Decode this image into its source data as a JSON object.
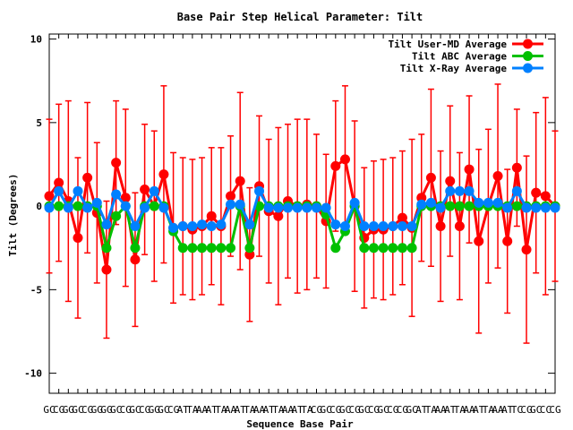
{
  "chart_data": {
    "type": "line",
    "title": "Base Pair Step Helical Parameter: Tilt",
    "xlabel": "Sequence Base Pair",
    "ylabel": "Tilt (Degrees)",
    "ylim": [
      -11.2,
      10.3
    ],
    "yticks": [
      10,
      5,
      0,
      -5,
      -10
    ],
    "grid": false,
    "legend_position": "top-right",
    "x": [
      1,
      2,
      3,
      4,
      5,
      6,
      7,
      8,
      9,
      10,
      11,
      12,
      13,
      14,
      15,
      16,
      17,
      18,
      19,
      20,
      21,
      22,
      23,
      24,
      25,
      26,
      27,
      28,
      29,
      30,
      31,
      32,
      33,
      34,
      35,
      36,
      37,
      38,
      39,
      40,
      41,
      42,
      43,
      44,
      45,
      46,
      47,
      48,
      49,
      50,
      51,
      52,
      53,
      54
    ],
    "x_tick_labels": [
      "GC",
      "CG",
      "GG",
      "GC",
      "CG",
      "GG",
      "GG",
      "GC",
      "CG",
      "GC",
      "CG",
      "GG",
      "GC",
      "CG",
      "AT",
      "TA",
      "AA",
      "AT",
      "TA",
      "AA",
      "AT",
      "TA",
      "AA",
      "AT",
      "TA",
      "AA",
      "AT",
      "TA",
      "CG",
      "GC",
      "CG",
      "GC",
      "CG",
      "GC",
      "CG",
      "GC",
      "CG",
      "CG",
      "GC",
      "AT",
      "TA",
      "AA",
      "AT",
      "TA",
      "AA",
      "AT",
      "TA",
      "AA",
      "AT",
      "TC",
      "CG",
      "GC",
      "CC",
      "CG"
    ],
    "series": [
      {
        "name": "Tilt User-MD Average",
        "color": "#ff0000",
        "values": [
          0.6,
          1.4,
          0.3,
          -1.9,
          1.7,
          -0.4,
          -3.8,
          2.6,
          0.5,
          -3.2,
          1.0,
          0.0,
          1.9,
          -1.3,
          -1.2,
          -1.4,
          -1.2,
          -0.6,
          -1.2,
          0.6,
          1.5,
          -2.9,
          1.2,
          -0.3,
          -0.6,
          0.3,
          0.0,
          0.1,
          0.0,
          -0.9,
          2.4,
          2.8,
          0.0,
          -1.9,
          -1.4,
          -1.4,
          -1.2,
          -0.7,
          -1.3,
          0.5,
          1.7,
          -1.2,
          1.5,
          -1.2,
          2.2,
          -2.1,
          0.0,
          1.8,
          -2.1,
          2.3,
          -2.6,
          0.8,
          0.6,
          0.0
        ],
        "error": [
          4.6,
          4.7,
          6.0,
          4.8,
          4.5,
          4.2,
          4.1,
          3.7,
          5.3,
          4.0,
          3.9,
          4.5,
          5.3,
          4.5,
          4.1,
          4.2,
          4.1,
          4.1,
          4.7,
          3.6,
          5.3,
          4.0,
          4.2,
          4.3,
          5.3,
          4.6,
          5.2,
          5.1,
          4.3,
          4.0,
          3.9,
          4.4,
          5.1,
          4.2,
          4.1,
          4.2,
          4.1,
          4.0,
          5.3,
          3.8,
          5.3,
          4.5,
          4.5,
          4.4,
          4.4,
          5.5,
          4.6,
          5.5,
          4.3,
          3.5,
          5.6,
          4.8,
          5.9,
          4.5
        ]
      },
      {
        "name": "Tilt ABC Average",
        "color": "#00c000",
        "values": [
          0.0,
          0.0,
          0.0,
          0.0,
          0.0,
          0.0,
          -2.5,
          -0.6,
          0.0,
          -2.5,
          0.0,
          0.0,
          0.0,
          -1.5,
          -2.5,
          -2.5,
          -2.5,
          -2.5,
          -2.5,
          -2.5,
          0.0,
          -2.5,
          0.0,
          0.0,
          0.0,
          0.0,
          0.0,
          0.0,
          0.0,
          -0.5,
          -2.5,
          -1.5,
          0.0,
          -2.5,
          -2.5,
          -2.5,
          -2.5,
          -2.5,
          -2.5,
          0.0,
          0.0,
          0.0,
          0.0,
          0.0,
          0.0,
          0.0,
          0.0,
          0.0,
          0.0,
          0.0,
          0.0,
          0.0,
          0.0,
          0.0
        ]
      },
      {
        "name": "Tilt X-Ray Average",
        "color": "#0080ff",
        "values": [
          -0.1,
          0.9,
          -0.1,
          0.9,
          -0.1,
          0.2,
          -1.1,
          0.7,
          0.0,
          -1.2,
          -0.1,
          0.9,
          -0.1,
          -1.3,
          -1.2,
          -1.2,
          -1.1,
          -1.2,
          -1.1,
          0.1,
          0.1,
          -1.1,
          0.9,
          -0.1,
          -0.1,
          -0.1,
          -0.1,
          -0.1,
          -0.1,
          -0.1,
          -1.1,
          -1.2,
          0.2,
          -1.2,
          -1.2,
          -1.2,
          -1.2,
          -1.2,
          -1.2,
          0.1,
          0.2,
          -0.1,
          0.9,
          0.9,
          0.9,
          0.2,
          0.2,
          0.2,
          -0.1,
          0.9,
          -0.1,
          -0.1,
          -0.1,
          -0.1
        ]
      }
    ]
  }
}
